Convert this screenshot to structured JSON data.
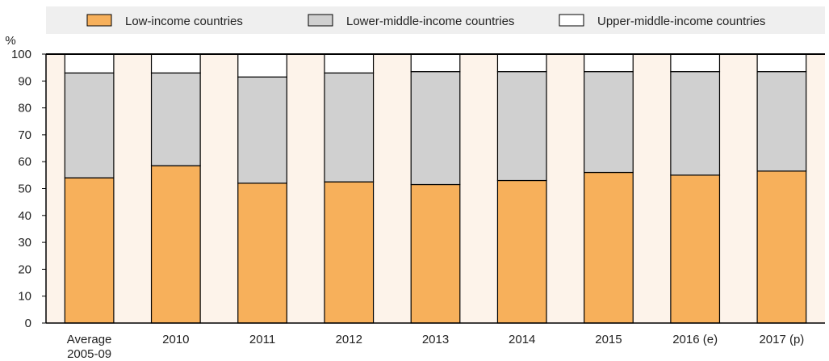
{
  "chart_data": {
    "type": "bar",
    "stacked": true,
    "unit_label": "%",
    "ylim": [
      0,
      100
    ],
    "yticks": [
      0,
      10,
      20,
      30,
      40,
      50,
      60,
      70,
      80,
      90,
      100
    ],
    "categories": [
      "Average 2005-09",
      "2010",
      "2011",
      "2012",
      "2013",
      "2014",
      "2015",
      "2016 (e)",
      "2017 (p)"
    ],
    "category_lines": [
      [
        "Average",
        "2005-09"
      ],
      [
        "2010"
      ],
      [
        "2011"
      ],
      [
        "2012"
      ],
      [
        "2013"
      ],
      [
        "2014"
      ],
      [
        "2015"
      ],
      [
        "2016 (e)"
      ],
      [
        "2017 (p)"
      ]
    ],
    "series": [
      {
        "name": "Low-income countries",
        "color": "#f7b05b",
        "values": [
          54,
          58.5,
          52,
          52.5,
          51.5,
          53,
          56,
          55,
          56.5
        ]
      },
      {
        "name": "Lower-middle-income countries",
        "color": "#d0d0d0",
        "values": [
          39,
          34.5,
          39.5,
          40.5,
          42,
          40.5,
          37.5,
          38.5,
          37
        ]
      },
      {
        "name": "Upper-middle-income countries",
        "color": "#ffffff",
        "values": [
          7,
          7,
          8.5,
          7,
          6.5,
          6.5,
          6.5,
          6.5,
          6.5
        ]
      }
    ],
    "legend_position": "top",
    "grid": false,
    "colors": {
      "band_shade": "#fdf3ea",
      "legend_bg": "#efefef",
      "axis": "#000000"
    }
  }
}
